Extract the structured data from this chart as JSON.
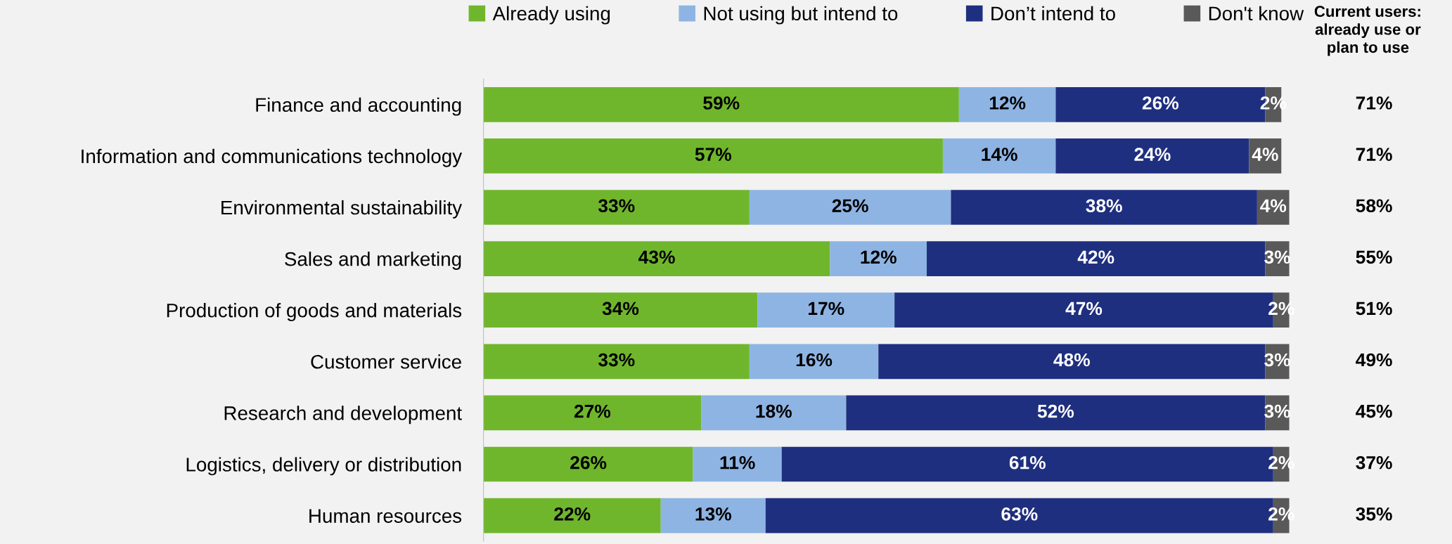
{
  "chart_data": {
    "type": "bar",
    "orientation": "horizontal",
    "stacked": true,
    "categories": [
      "Finance and accounting",
      "Information and communications technology",
      "Environmental sustainability",
      "Sales and marketing",
      "Production of goods and materials",
      "Customer service",
      "Research and development",
      "Logistics, delivery or distribution",
      "Human resources"
    ],
    "series": [
      {
        "name": "Already using",
        "color": "#70b62c",
        "values": [
          59,
          57,
          33,
          43,
          34,
          33,
          27,
          26,
          22
        ],
        "value_labels": [
          "59%",
          "57%",
          "33%",
          "43%",
          "34%",
          "33%",
          "27%",
          "26%",
          "22%"
        ]
      },
      {
        "name": "Not using but intend to",
        "color": "#8eb4e3",
        "values": [
          12,
          14,
          25,
          12,
          17,
          16,
          18,
          11,
          13
        ],
        "value_labels": [
          "12%",
          "14%",
          "25%",
          "12%",
          "17%",
          "16%",
          "18%",
          "11%",
          "13%"
        ]
      },
      {
        "name": "Don’t intend to",
        "color": "#1f2f7f",
        "values": [
          26,
          24,
          38,
          42,
          47,
          48,
          52,
          61,
          63
        ],
        "value_labels": [
          "26%",
          "24%",
          "38%",
          "42%",
          "47%",
          "48%",
          "52%",
          "61%",
          "63%"
        ]
      },
      {
        "name": "Don't know",
        "color": "#595959",
        "values": [
          2,
          4,
          4,
          3,
          2,
          3,
          3,
          2,
          2
        ],
        "value_labels": [
          "2%",
          "4%",
          "4%",
          "3%",
          "2%",
          "3%",
          "3%",
          "2%",
          "2%"
        ]
      }
    ],
    "tick_labels": "y",
    "legend": "top",
    "grid": false,
    "annotations": [
      "Current users: already use or plan to use",
      "71%",
      "71%",
      "58%",
      "55%",
      "51%",
      "49%",
      "45%",
      "37%",
      "35%"
    ]
  }
}
